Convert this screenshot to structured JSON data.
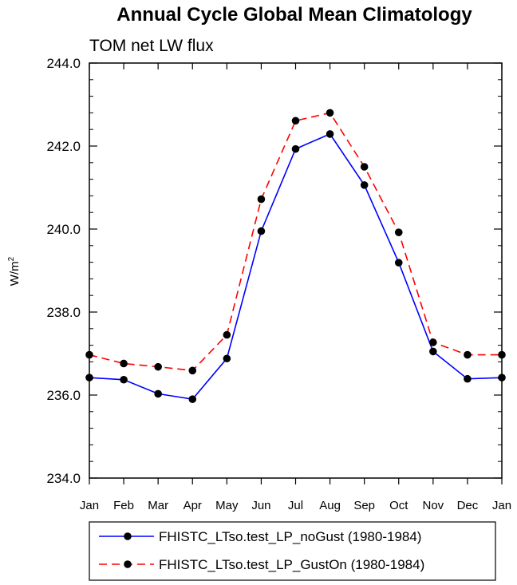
{
  "chart_data": {
    "type": "line",
    "title": "Annual Cycle Global Mean Climatology",
    "subtitle": "TOM net LW flux",
    "xlabel": "",
    "ylabel": "W/m",
    "ylabel_superscript": "2",
    "ylim": [
      234.0,
      244.0
    ],
    "yticks": [
      "234.0",
      "236.0",
      "238.0",
      "240.0",
      "242.0",
      "244.0"
    ],
    "categories": [
      "Jan",
      "Feb",
      "Mar",
      "Apr",
      "May",
      "Jun",
      "Jul",
      "Aug",
      "Sep",
      "Oct",
      "Nov",
      "Dec",
      "Jan"
    ],
    "series": [
      {
        "name": "FHISTC_LTso.test_LP_noGust (1980-1984)",
        "color": "#0000ff",
        "dash": "solid",
        "values": [
          236.42,
          236.37,
          236.03,
          235.9,
          236.88,
          239.95,
          241.93,
          242.29,
          241.06,
          239.19,
          237.05,
          236.39,
          236.42
        ]
      },
      {
        "name": "FHISTC_LTso.test_LP_GustOn (1980-1984)",
        "color": "#ff0000",
        "dash": "dashed",
        "values": [
          236.97,
          236.76,
          236.68,
          236.59,
          237.45,
          240.72,
          242.61,
          242.8,
          241.5,
          239.92,
          237.27,
          236.97,
          236.97
        ]
      }
    ],
    "legend_position": "bottom"
  }
}
